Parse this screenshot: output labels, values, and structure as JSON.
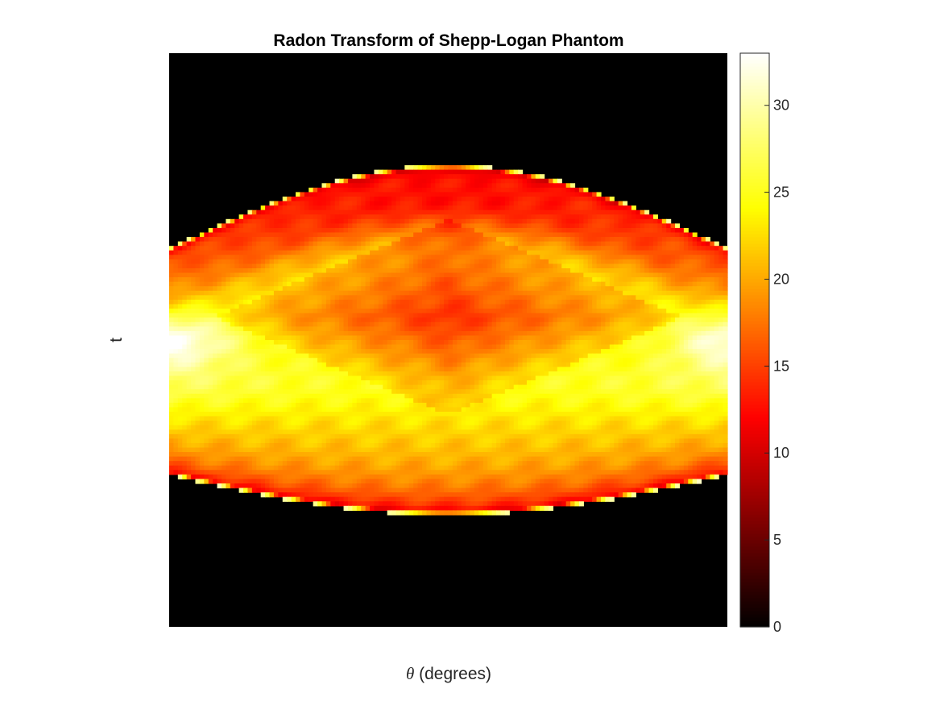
{
  "chart_data": {
    "type": "heatmap",
    "title": "Radon Transform of Shepp-Logan Phantom",
    "xlabel_symbol": "θ",
    "xlabel_text": " (degrees)",
    "ylabel": "t",
    "colormap": "hot",
    "colorbar": {
      "ticks": [
        0,
        5,
        10,
        15,
        20,
        25,
        30
      ],
      "tick_labels": [
        "0",
        "5",
        "10",
        "15",
        "20",
        "25",
        "30"
      ],
      "range": [
        0,
        33
      ]
    },
    "value_range": [
      0,
      33
    ],
    "description_of_structure": {
      "background_value": 0,
      "columns": 128,
      "rows": 128,
      "notes_omitted": true
    }
  }
}
